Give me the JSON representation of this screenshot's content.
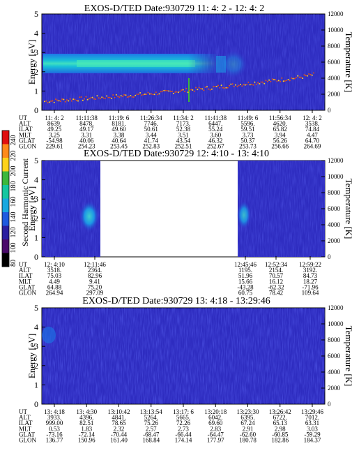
{
  "colorbar": {
    "label": "Second Harmonic Current",
    "ticks": [
      "240",
      "220",
      "200",
      "180",
      "160",
      "140",
      "120",
      "100",
      "80"
    ],
    "colors": [
      "#e01010",
      "#ff8a1a",
      "#ffd21a",
      "#3cb83c",
      "#16c7a0",
      "#18a8e0",
      "#1e5adf",
      "#2a1fa0",
      "#4a0a6a",
      "#000000"
    ]
  },
  "panels": [
    {
      "title": "EXOS-D/TED   Date:930729  11: 4: 2 - 12: 4: 2",
      "ylabel": "Energy [eV]",
      "y2label": "Temperature [K]",
      "yticks": [
        "0",
        "1",
        "2",
        "3",
        "4",
        "5"
      ],
      "y2ticks": [
        "0",
        "2000",
        "4000",
        "6000",
        "8000",
        "10000",
        "12000"
      ],
      "row_labels": [
        "UT",
        "ALT",
        "ILAT",
        "MLT",
        "GLAT",
        "GLON"
      ],
      "columns": [
        [
          "11: 4: 2",
          "8639.",
          "49.25",
          "3.25",
          "-54.98",
          "229.61"
        ],
        [
          "11:11:38",
          "8478.",
          "49.17",
          "3.31",
          "40.06",
          "254.23"
        ],
        [
          "11:19: 6",
          "8181.",
          "49.60",
          "3.38",
          "40.64",
          "253.45"
        ],
        [
          "11:26:34",
          "7746.",
          "50.61",
          "3.44",
          "41.74",
          "252.83"
        ],
        [
          "11:34: 2",
          "7173.",
          "52.38",
          "3.51",
          "43.54",
          "252.51"
        ],
        [
          "11:41:38",
          "6447.",
          "55.24",
          "3.60",
          "46.32",
          "252.67"
        ],
        [
          "11:49: 6",
          "5596.",
          "59.51",
          "3.73",
          "50.37",
          "253.73"
        ],
        [
          "11:56:34",
          "4620.",
          "65.82",
          "3.94",
          "56.26",
          "256.66"
        ],
        [
          "12: 4: 2",
          "3538.",
          "74.84",
          "4.47",
          "64.70",
          "264.69"
        ]
      ]
    },
    {
      "title": "EXOS-D/TED   Date:930729  12: 4:10 - 13: 4:10",
      "ylabel": "Energy [eV]",
      "y2label": "Temperature [K]",
      "yticks": [
        "0",
        "1",
        "2",
        "3",
        "4",
        "5"
      ],
      "y2ticks": [
        "0",
        "2000",
        "4000",
        "6000",
        "8000",
        "10000",
        "12000"
      ],
      "row_labels": [
        "UT",
        "ALT",
        "ILAT",
        "MLT",
        "GLAT",
        "GLON"
      ],
      "columns_left": [
        [
          "12: 4:10",
          "3518.",
          "75.03",
          "4.49",
          "64.88",
          "264.94"
        ],
        [
          "12:11:46",
          "2364.",
          "82.96",
          "9.41",
          "75.20",
          "297.09"
        ]
      ],
      "columns_right": [
        [
          "12:45:46",
          "1195.",
          "51.96",
          "15.66",
          "-43.28",
          "60.75"
        ],
        [
          "12:52:34",
          "2154.",
          "70.57",
          "16.12",
          "-62.32",
          "78.42"
        ],
        [
          "12:59:22",
          "3192.",
          "84.73",
          "18.27",
          "-71.96",
          "109.64"
        ]
      ]
    },
    {
      "title": "EXOS-D/TED   Date:930729  13: 4:18 - 13:29:46",
      "ylabel": "Energy [eV]",
      "y2label": "Temperature [K]",
      "yticks": [
        "0",
        "1",
        "2",
        "3",
        "4",
        "5"
      ],
      "y2ticks": [
        "0",
        "2000",
        "4000",
        "6000",
        "8000",
        "10000",
        "12000"
      ],
      "row_labels": [
        "UT",
        "ALT",
        "ILAT",
        "MLT",
        "GLAT",
        "GLON"
      ],
      "columns": [
        [
          "13: 4:18",
          "3933.",
          "999.00",
          "0.53",
          "-73.16",
          "136.77"
        ],
        [
          "13: 4:30",
          "4396.",
          "82.51",
          "1.83",
          "-72.14",
          "150.96"
        ],
        [
          "13:10:42",
          "4841.",
          "78.65",
          "2.32",
          "-70.44",
          "161.40"
        ],
        [
          "13:13:54",
          "5264.",
          "75.26",
          "2.57",
          "-68.47",
          "168.84"
        ],
        [
          "13:17: 6",
          "5665.",
          "72.26",
          "2.73",
          "-66.44",
          "174.14"
        ],
        [
          "13:20:18",
          "6042.",
          "69.60",
          "2.83",
          "-64.47",
          "177.97"
        ],
        [
          "13:23:30",
          "6395.",
          "67.24",
          "2.91",
          "-62.60",
          "180.78"
        ],
        [
          "13:26:42",
          "6722.",
          "65.13",
          "2.98",
          "-60.85",
          "182.86"
        ],
        [
          "13:29:46",
          "7012.",
          "63.31",
          "3.03",
          "-59.29",
          "184.37"
        ]
      ]
    }
  ],
  "chart_data": [
    {
      "type": "heatmap",
      "title": "EXOS-D/TED   Date:930729  11: 4: 2 - 12: 4: 2",
      "ylabel": "Energy [eV]",
      "y2label": "Temperature [K]",
      "ylim": [
        0,
        5
      ],
      "y2lim": [
        0,
        12000
      ],
      "band_energy_range": [
        2.0,
        3.0
      ],
      "temperature_trace": [
        [
          0.0,
          1100
        ],
        [
          0.33,
          1900
        ],
        [
          0.55,
          2600
        ],
        [
          0.75,
          3400
        ],
        [
          0.9,
          4000
        ],
        [
          1.0,
          4600
        ]
      ]
    },
    {
      "type": "heatmap",
      "title": "EXOS-D/TED   Date:930729  12: 4:10 - 13: 4:10",
      "ylabel": "Energy [eV]",
      "y2label": "Temperature [K]",
      "ylim": [
        0,
        5
      ],
      "y2lim": [
        0,
        12000
      ]
    },
    {
      "type": "heatmap",
      "title": "EXOS-D/TED   Date:930729  13: 4:18 - 13:29:46",
      "ylabel": "Energy [eV]",
      "y2label": "Temperature [K]",
      "ylim": [
        0,
        5
      ],
      "y2lim": [
        0,
        12000
      ]
    }
  ]
}
